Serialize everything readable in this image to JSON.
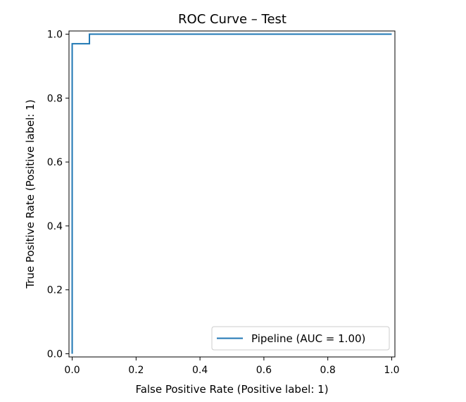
{
  "chart_data": {
    "type": "line",
    "title": "ROC Curve – Test",
    "xlabel": "False Positive Rate (Positive label: 1)",
    "ylabel": "True Positive Rate (Positive label: 1)",
    "xlim": [
      -0.01,
      1.01
    ],
    "ylim": [
      -0.01,
      1.01
    ],
    "xticks": [
      0.0,
      0.2,
      0.4,
      0.6,
      0.8,
      1.0
    ],
    "yticks": [
      0.0,
      0.2,
      0.4,
      0.6,
      0.8,
      1.0
    ],
    "xtick_labels": [
      "0.0",
      "0.2",
      "0.4",
      "0.6",
      "0.8",
      "1.0"
    ],
    "ytick_labels": [
      "0.0",
      "0.2",
      "0.4",
      "0.6",
      "0.8",
      "1.0"
    ],
    "grid": false,
    "legend_position": "lower-right",
    "series": [
      {
        "name": "Pipeline (AUC = 1.00)",
        "color": "#1f77b4",
        "x": [
          0.0,
          0.0,
          0.0,
          0.054,
          0.054,
          1.0
        ],
        "y": [
          0.0,
          0.03,
          0.97,
          0.97,
          1.0,
          1.0
        ]
      }
    ]
  }
}
